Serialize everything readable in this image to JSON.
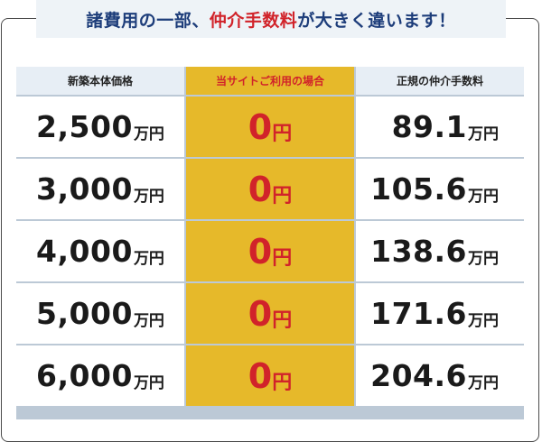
{
  "headline": {
    "part1": "諸費用の一部、",
    "highlight": "仲介手数料",
    "part2": "が大きく違います！"
  },
  "table": {
    "headers": [
      "新築本体価格",
      "当サイトご利用の場合",
      "正規の仲介手数料"
    ],
    "rows": [
      {
        "price": "2,500",
        "price_unit": "万円",
        "ours": "0",
        "ours_unit": "円",
        "regular": "89.1",
        "regular_unit": "万円"
      },
      {
        "price": "3,000",
        "price_unit": "万円",
        "ours": "0",
        "ours_unit": "円",
        "regular": "105.6",
        "regular_unit": "万円"
      },
      {
        "price": "4,000",
        "price_unit": "万円",
        "ours": "0",
        "ours_unit": "円",
        "regular": "138.6",
        "regular_unit": "万円"
      },
      {
        "price": "5,000",
        "price_unit": "万円",
        "ours": "0",
        "ours_unit": "円",
        "regular": "171.6",
        "regular_unit": "万円"
      },
      {
        "price": "6,000",
        "price_unit": "万円",
        "ours": "0",
        "ours_unit": "円",
        "regular": "204.6",
        "regular_unit": "万円"
      }
    ]
  },
  "colors": {
    "highlight_red": "#d1232a",
    "gold": "#e6b92a",
    "navy": "#1d3d7a"
  }
}
